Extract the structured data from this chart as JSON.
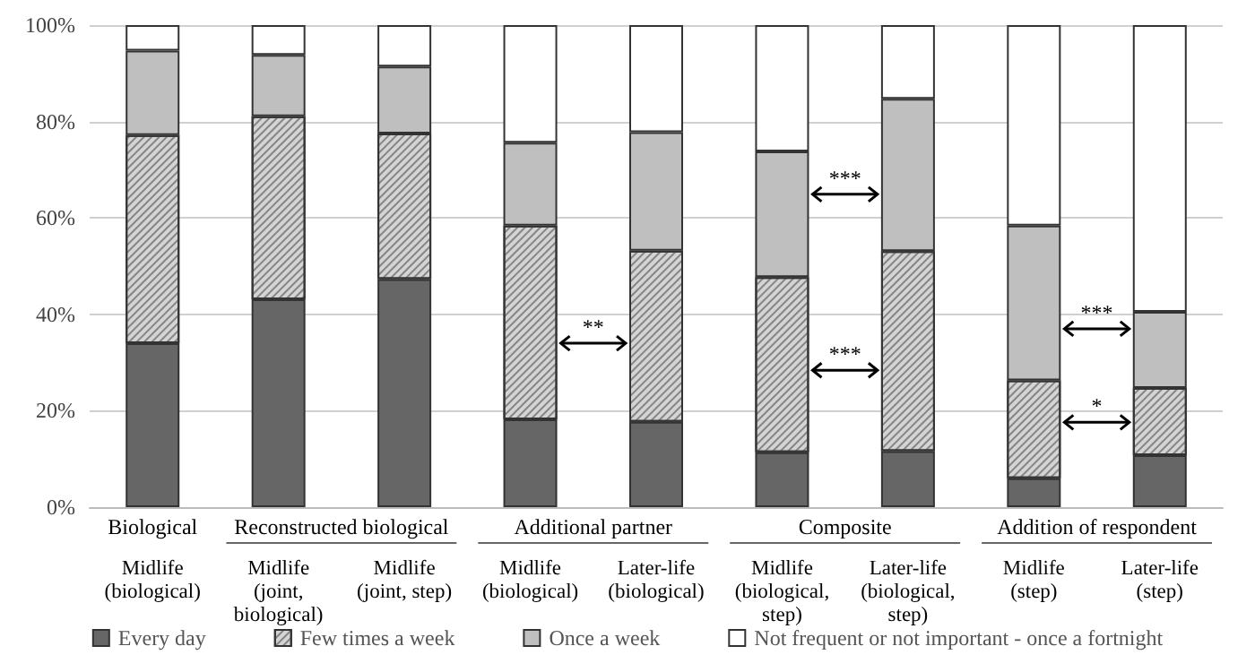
{
  "chart_data": {
    "type": "bar",
    "stacked": true,
    "categories": [
      "Midlife\n(biological)",
      "Midlife\n(joint,\nbiological)",
      "Midlife\n(joint, step)",
      "Midlife\n(biological)",
      "Later-life\n(biological)",
      "Midlife\n(biological,\nstep)",
      "Later-life\n(biological,\nstep)",
      "Midlife\n(step)",
      "Later-life\n(step)"
    ],
    "series": [
      {
        "name": "Every day",
        "color": "#666666",
        "values": [
          34.0,
          43.1,
          47.3,
          18.2,
          17.7,
          11.4,
          11.6,
          6.0,
          10.8
        ]
      },
      {
        "name": "Few times a week",
        "color": "#d4d4d4",
        "values": [
          43.2,
          38.0,
          30.2,
          40.2,
          35.5,
          36.3,
          41.5,
          20.3,
          13.9
        ]
      },
      {
        "name": "Once a week",
        "color": "#bfbfbf",
        "values": [
          17.5,
          12.7,
          13.9,
          17.2,
          24.6,
          26.1,
          31.6,
          32.1,
          15.8
        ]
      },
      {
        "name": "Not frequent or not important - once a fortnight",
        "color": "#ffffff",
        "values": [
          5.3,
          6.2,
          8.6,
          24.4,
          22.2,
          26.2,
          15.3,
          41.6,
          59.5
        ]
      }
    ],
    "ylim": [
      0,
      100
    ],
    "yticks": [
      {
        "value": 0,
        "label": "0%"
      },
      {
        "value": 20,
        "label": "20%"
      },
      {
        "value": 40,
        "label": "40%"
      },
      {
        "value": 60,
        "label": "60%"
      },
      {
        "value": 80,
        "label": "80%"
      },
      {
        "value": 100,
        "label": "100%"
      }
    ],
    "grid": "y",
    "legend": "bottom",
    "annotations": [
      "Biological",
      "Reconstructed biological",
      "Additional partner",
      "Composite",
      "Addition of respondent",
      "**",
      "***",
      "***",
      "***",
      "*"
    ]
  }
}
